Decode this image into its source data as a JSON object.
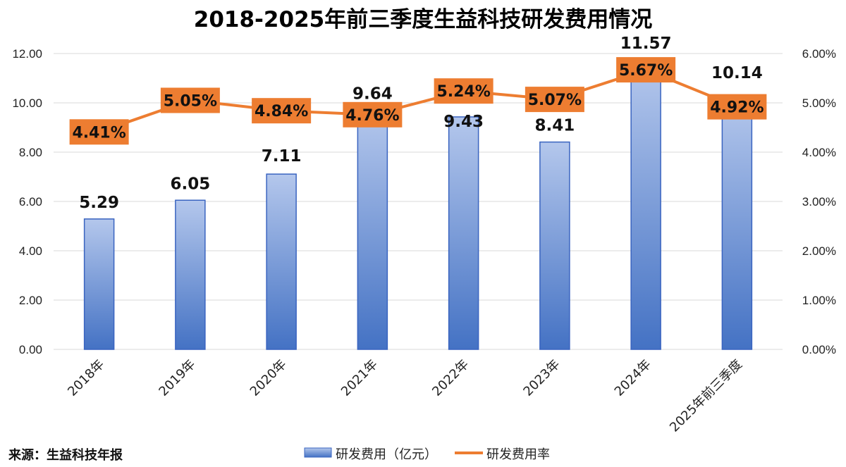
{
  "chart_data": {
    "type": "bar+line",
    "title": "2018-2025年前三季度生益科技研发费用情况",
    "categories": [
      "2018年",
      "2019年",
      "2020年",
      "2021年",
      "2022年",
      "2023年",
      "2024年",
      "2025年前三季度"
    ],
    "series": [
      {
        "name": "研发费用（亿元）",
        "type": "bar",
        "axis": "left",
        "values": [
          5.29,
          6.05,
          7.11,
          9.64,
          9.43,
          8.41,
          11.57,
          10.14
        ],
        "labels": [
          "5.29",
          "6.05",
          "7.11",
          "9.64",
          "9.43",
          "8.41",
          "11.57",
          "10.14"
        ]
      },
      {
        "name": "研发费用率",
        "type": "line",
        "axis": "right",
        "values": [
          4.41,
          5.05,
          4.84,
          4.76,
          5.24,
          5.07,
          5.67,
          4.92
        ],
        "labels": [
          "4.41%",
          "5.05%",
          "4.84%",
          "4.76%",
          "5.24%",
          "5.07%",
          "5.67%",
          "4.92%"
        ]
      }
    ],
    "y_left": {
      "min": 0,
      "max": 12,
      "ticks": [
        "0.00",
        "2.00",
        "4.00",
        "6.00",
        "8.00",
        "10.00",
        "12.00"
      ]
    },
    "y_right": {
      "min": 0,
      "max": 6,
      "ticks": [
        "0.00%",
        "1.00%",
        "2.00%",
        "3.00%",
        "4.00%",
        "5.00%",
        "6.00%"
      ]
    },
    "grid": true,
    "legend_position": "bottom-center",
    "source": "来源：生益科技年报"
  },
  "colors": {
    "bar_top": "#b4c7ec",
    "bar_bottom": "#4472c4",
    "bar_stroke": "#3a64c0",
    "line": "#ed7d31",
    "label_box": "#ed7d31",
    "grid": "#d9d9d9"
  }
}
